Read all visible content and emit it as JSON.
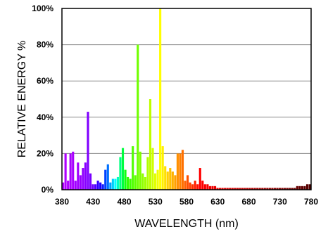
{
  "chart_data": {
    "type": "bar",
    "xlabel": "WAVELENGTH (nm)",
    "ylabel": "RELATIVE ENERGY %",
    "xlim": [
      380,
      780
    ],
    "ylim": [
      0,
      100
    ],
    "x_ticks": [
      380,
      430,
      480,
      530,
      580,
      630,
      680,
      730,
      780
    ],
    "y_ticks": [
      0,
      20,
      40,
      60,
      80,
      100
    ],
    "y_tick_labels": [
      "0%",
      "20%",
      "40%",
      "60%",
      "80%",
      "100%"
    ],
    "grid": "horizontal",
    "bin_width_nm": 4,
    "bins": [
      {
        "x": 380,
        "value": 4,
        "color": "#b000ff"
      },
      {
        "x": 384,
        "value": 20,
        "color": "#b000ff"
      },
      {
        "x": 388,
        "value": 5,
        "color": "#b000ff"
      },
      {
        "x": 392,
        "value": 20,
        "color": "#a800ff"
      },
      {
        "x": 396,
        "value": 21,
        "color": "#a800ff"
      },
      {
        "x": 400,
        "value": 5,
        "color": "#a000ff"
      },
      {
        "x": 404,
        "value": 15,
        "color": "#a000ff"
      },
      {
        "x": 408,
        "value": 8,
        "color": "#9800ff"
      },
      {
        "x": 412,
        "value": 12,
        "color": "#9000ff"
      },
      {
        "x": 416,
        "value": 15,
        "color": "#8800ff"
      },
      {
        "x": 420,
        "value": 43,
        "color": "#8000ff"
      },
      {
        "x": 424,
        "value": 9,
        "color": "#7800ff"
      },
      {
        "x": 428,
        "value": 3,
        "color": "#6800ff"
      },
      {
        "x": 432,
        "value": 3,
        "color": "#5000ff"
      },
      {
        "x": 436,
        "value": 5,
        "color": "#3000ff"
      },
      {
        "x": 440,
        "value": 4,
        "color": "#2000ff"
      },
      {
        "x": 444,
        "value": 3,
        "color": "#1020ff"
      },
      {
        "x": 448,
        "value": 11,
        "color": "#0040ff"
      },
      {
        "x": 452,
        "value": 14,
        "color": "#0070ff"
      },
      {
        "x": 456,
        "value": 4,
        "color": "#00a0ff"
      },
      {
        "x": 460,
        "value": 6,
        "color": "#00d0ff"
      },
      {
        "x": 464,
        "value": 6,
        "color": "#00ffff"
      },
      {
        "x": 468,
        "value": 7,
        "color": "#00ffc0"
      },
      {
        "x": 472,
        "value": 18,
        "color": "#00ff80"
      },
      {
        "x": 476,
        "value": 23,
        "color": "#00ff40"
      },
      {
        "x": 480,
        "value": 11,
        "color": "#10ff10"
      },
      {
        "x": 484,
        "value": 7,
        "color": "#30ff00"
      },
      {
        "x": 488,
        "value": 6,
        "color": "#40ff00"
      },
      {
        "x": 492,
        "value": 24,
        "color": "#50ff00"
      },
      {
        "x": 496,
        "value": 8,
        "color": "#60ff00"
      },
      {
        "x": 500,
        "value": 80,
        "color": "#70ff00"
      },
      {
        "x": 504,
        "value": 21,
        "color": "#80ff00"
      },
      {
        "x": 508,
        "value": 9,
        "color": "#90ff00"
      },
      {
        "x": 512,
        "value": 7,
        "color": "#a0ff00"
      },
      {
        "x": 516,
        "value": 18,
        "color": "#b0ff00"
      },
      {
        "x": 520,
        "value": 50,
        "color": "#c0ff00"
      },
      {
        "x": 524,
        "value": 23,
        "color": "#d0ff00"
      },
      {
        "x": 528,
        "value": 9,
        "color": "#e0ff00"
      },
      {
        "x": 532,
        "value": 11,
        "color": "#f0ff00"
      },
      {
        "x": 536,
        "value": 100,
        "color": "#ffff00"
      },
      {
        "x": 540,
        "value": 24,
        "color": "#fff000"
      },
      {
        "x": 544,
        "value": 13,
        "color": "#ffe000"
      },
      {
        "x": 548,
        "value": 10,
        "color": "#ffd000"
      },
      {
        "x": 552,
        "value": 12,
        "color": "#ffc000"
      },
      {
        "x": 556,
        "value": 10,
        "color": "#ffb000"
      },
      {
        "x": 560,
        "value": 8,
        "color": "#ffa000"
      },
      {
        "x": 564,
        "value": 20,
        "color": "#ff9000"
      },
      {
        "x": 568,
        "value": 20,
        "color": "#ff8000"
      },
      {
        "x": 572,
        "value": 22,
        "color": "#ff7000"
      },
      {
        "x": 576,
        "value": 5,
        "color": "#ff6000"
      },
      {
        "x": 580,
        "value": 8,
        "color": "#ff5000"
      },
      {
        "x": 584,
        "value": 4,
        "color": "#ff4000"
      },
      {
        "x": 588,
        "value": 3,
        "color": "#ff3000"
      },
      {
        "x": 592,
        "value": 5,
        "color": "#ff2000"
      },
      {
        "x": 596,
        "value": 3,
        "color": "#ff1000"
      },
      {
        "x": 600,
        "value": 12,
        "color": "#ff0000"
      },
      {
        "x": 604,
        "value": 5,
        "color": "#ff0000"
      },
      {
        "x": 608,
        "value": 3,
        "color": "#f80000"
      },
      {
        "x": 612,
        "value": 3,
        "color": "#f80000"
      },
      {
        "x": 616,
        "value": 2,
        "color": "#f00000"
      },
      {
        "x": 620,
        "value": 2,
        "color": "#f00000"
      },
      {
        "x": 624,
        "value": 2,
        "color": "#e80000"
      },
      {
        "x": 628,
        "value": 1,
        "color": "#e80000"
      },
      {
        "x": 632,
        "value": 1,
        "color": "#e00000"
      },
      {
        "x": 636,
        "value": 1,
        "color": "#e00000"
      },
      {
        "x": 640,
        "value": 1,
        "color": "#d80000"
      },
      {
        "x": 644,
        "value": 1,
        "color": "#d80000"
      },
      {
        "x": 648,
        "value": 1,
        "color": "#d00000"
      },
      {
        "x": 652,
        "value": 1,
        "color": "#d00000"
      },
      {
        "x": 656,
        "value": 1,
        "color": "#c80000"
      },
      {
        "x": 660,
        "value": 1,
        "color": "#c80000"
      },
      {
        "x": 664,
        "value": 1,
        "color": "#c00000"
      },
      {
        "x": 668,
        "value": 1,
        "color": "#c00000"
      },
      {
        "x": 672,
        "value": 1,
        "color": "#b80000"
      },
      {
        "x": 676,
        "value": 1,
        "color": "#b80000"
      },
      {
        "x": 680,
        "value": 1,
        "color": "#b00000"
      },
      {
        "x": 684,
        "value": 1,
        "color": "#b00000"
      },
      {
        "x": 688,
        "value": 1,
        "color": "#a80000"
      },
      {
        "x": 692,
        "value": 1,
        "color": "#a80000"
      },
      {
        "x": 696,
        "value": 1,
        "color": "#a00000"
      },
      {
        "x": 700,
        "value": 1,
        "color": "#a00000"
      },
      {
        "x": 704,
        "value": 1,
        "color": "#980000"
      },
      {
        "x": 708,
        "value": 1,
        "color": "#980000"
      },
      {
        "x": 712,
        "value": 1,
        "color": "#900000"
      },
      {
        "x": 716,
        "value": 1,
        "color": "#900000"
      },
      {
        "x": 720,
        "value": 1,
        "color": "#880000"
      },
      {
        "x": 724,
        "value": 1,
        "color": "#880000"
      },
      {
        "x": 728,
        "value": 1,
        "color": "#800000"
      },
      {
        "x": 732,
        "value": 1,
        "color": "#800000"
      },
      {
        "x": 736,
        "value": 1,
        "color": "#780000"
      },
      {
        "x": 740,
        "value": 1,
        "color": "#780000"
      },
      {
        "x": 744,
        "value": 1,
        "color": "#700000"
      },
      {
        "x": 748,
        "value": 1,
        "color": "#700000"
      },
      {
        "x": 752,
        "value": 1,
        "color": "#680000"
      },
      {
        "x": 756,
        "value": 2,
        "color": "#680000"
      },
      {
        "x": 760,
        "value": 2,
        "color": "#600000"
      },
      {
        "x": 764,
        "value": 2,
        "color": "#600000"
      },
      {
        "x": 768,
        "value": 2,
        "color": "#580000"
      },
      {
        "x": 772,
        "value": 3,
        "color": "#580000"
      },
      {
        "x": 776,
        "value": 3,
        "color": "#500000"
      }
    ]
  }
}
